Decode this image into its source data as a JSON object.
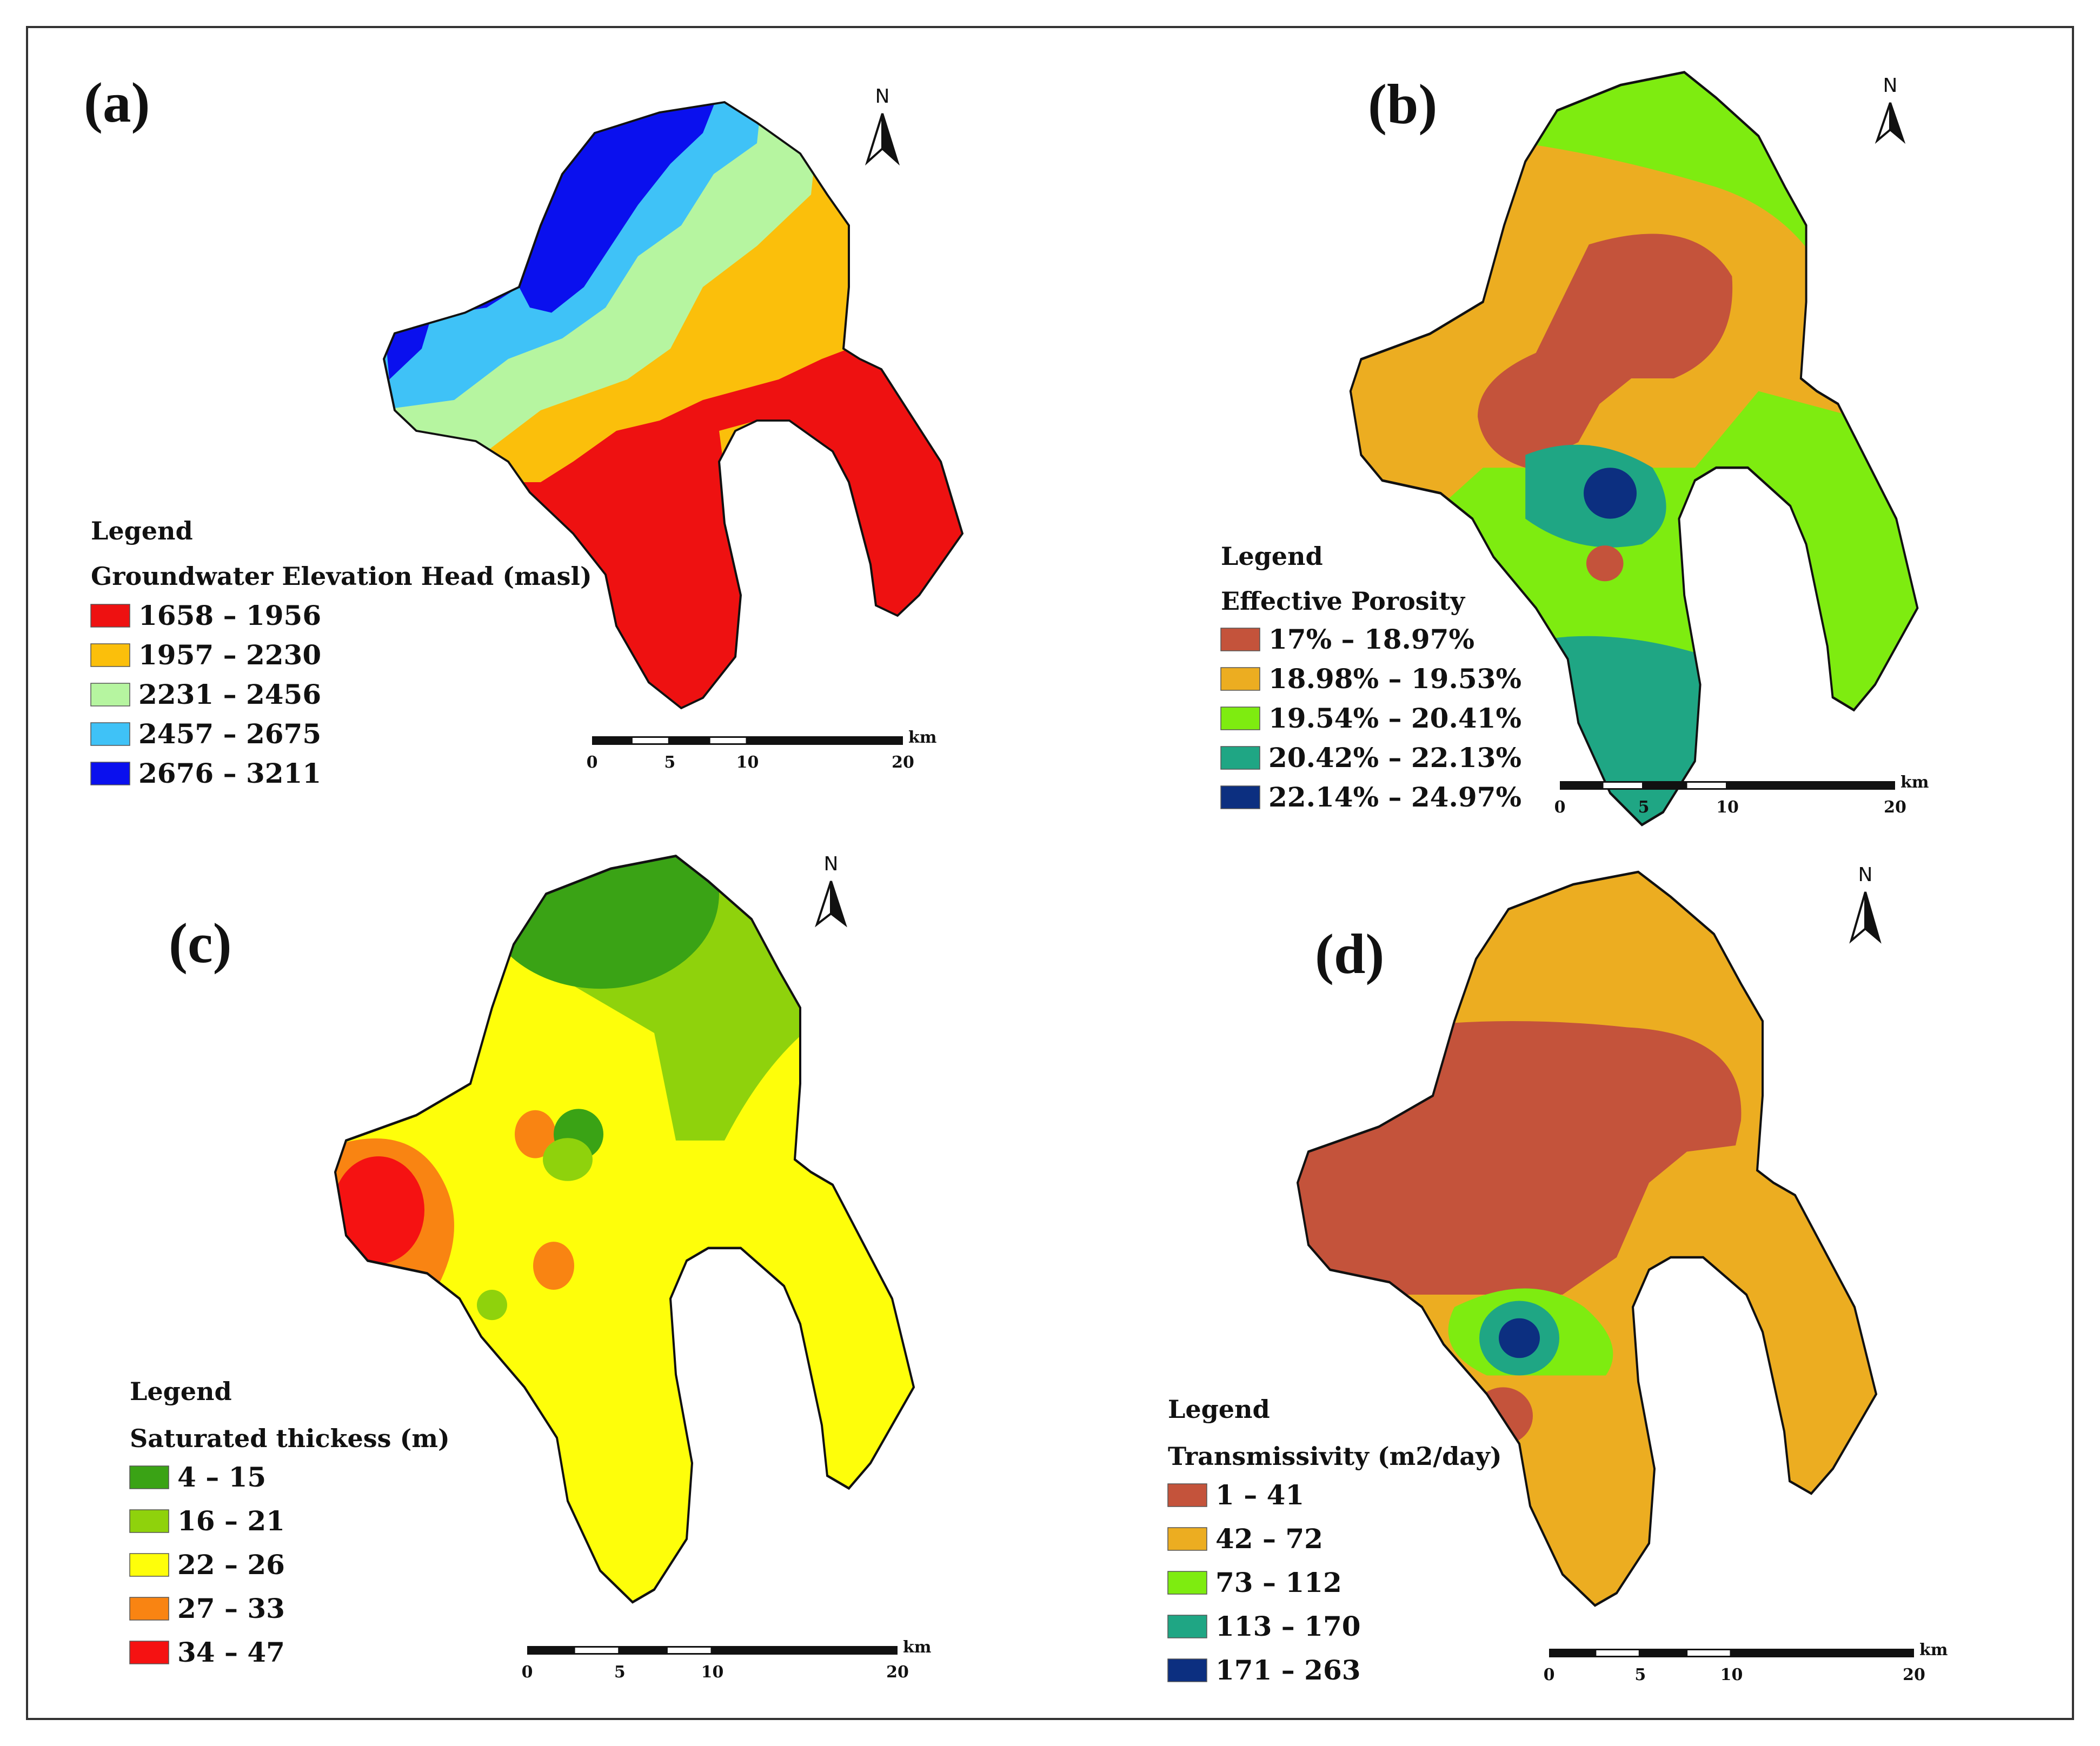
{
  "panels": [
    {
      "label": "(a)",
      "legend_heading": "Legend",
      "legend_title": "Groundwater Elevation Head (masl)",
      "classes": [
        {
          "range": "1658 – 1956",
          "color": "#ee1111"
        },
        {
          "range": "1957 – 2230",
          "color": "#fbbf0b"
        },
        {
          "range": "2231 – 2456",
          "color": "#b6f5a0"
        },
        {
          "range": "2457 – 2675",
          "color": "#3fc2f7"
        },
        {
          "range": "2676 – 3211",
          "color": "#0a10ee"
        }
      ],
      "north_label": "N",
      "scale_ticks": [
        "0",
        "5",
        "10",
        "20"
      ],
      "scale_unit": "km"
    },
    {
      "label": "(b)",
      "legend_heading": "Legend",
      "legend_title": "Effective Porosity",
      "classes": [
        {
          "range": "17% – 18.97%",
          "color": "#c4533b"
        },
        {
          "range": "18.98% – 19.53%",
          "color": "#ecad21"
        },
        {
          "range": "19.54% – 20.41%",
          "color": "#7eec10"
        },
        {
          "range": "20.42% – 22.13%",
          "color": "#1fa684"
        },
        {
          "range": "22.14% – 24.97%",
          "color": "#0c2f80"
        }
      ],
      "north_label": "N",
      "scale_ticks": [
        "0",
        "5",
        "10",
        "20"
      ],
      "scale_unit": "km"
    },
    {
      "label": "(c)",
      "legend_heading": "Legend",
      "legend_title": "Saturated thickess (m)",
      "classes": [
        {
          "range": "4 – 15",
          "color": "#3aa315"
        },
        {
          "range": "16 – 21",
          "color": "#8fd20c"
        },
        {
          "range": "22 – 26",
          "color": "#fefe0a"
        },
        {
          "range": "27 – 33",
          "color": "#f98412"
        },
        {
          "range": "34 – 47",
          "color": "#f51212"
        }
      ],
      "north_label": "N",
      "scale_ticks": [
        "0",
        "5",
        "10",
        "20"
      ],
      "scale_unit": "km"
    },
    {
      "label": "(d)",
      "legend_heading": "Legend",
      "legend_title": "Transmissivity (m2/day)",
      "classes": [
        {
          "range": "1 – 41",
          "color": "#c4533b"
        },
        {
          "range": "42 – 72",
          "color": "#ecad21"
        },
        {
          "range": "73 – 112",
          "color": "#7eec10"
        },
        {
          "range": "113 – 170",
          "color": "#1fa684"
        },
        {
          "range": "171 – 263",
          "color": "#0c2f80"
        }
      ],
      "north_label": "N",
      "scale_ticks": [
        "0",
        "5",
        "10",
        "20"
      ],
      "scale_unit": "km"
    }
  ]
}
